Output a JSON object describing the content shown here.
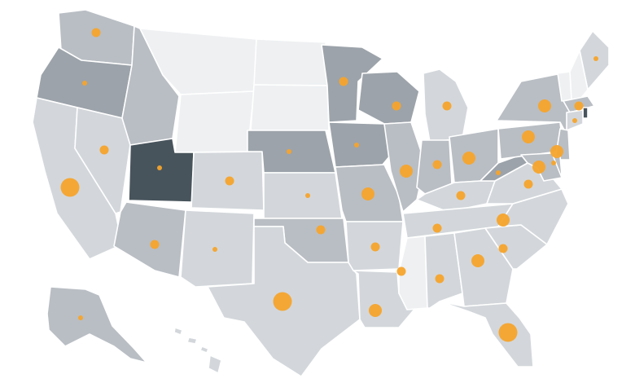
{
  "map": {
    "type": "choropleth-bubble",
    "region": "United States",
    "colors": {
      "level0": "#eef0f2",
      "level1": "#d3d7db",
      "level2": "#b9bec4",
      "level3": "#9ca3aa",
      "level4": "#48545c",
      "bubble": "#f6a42c",
      "border": "#ffffff"
    },
    "states": [
      {
        "code": "WA",
        "level": 2
      },
      {
        "code": "OR",
        "level": 3
      },
      {
        "code": "CA",
        "level": 1
      },
      {
        "code": "NV",
        "level": 1
      },
      {
        "code": "ID",
        "level": 2
      },
      {
        "code": "MT",
        "level": 0
      },
      {
        "code": "WY",
        "level": 0
      },
      {
        "code": "UT",
        "level": 4
      },
      {
        "code": "CO",
        "level": 1
      },
      {
        "code": "AZ",
        "level": 2
      },
      {
        "code": "NM",
        "level": 1
      },
      {
        "code": "ND",
        "level": 0
      },
      {
        "code": "SD",
        "level": 0
      },
      {
        "code": "NE",
        "level": 3
      },
      {
        "code": "KS",
        "level": 1
      },
      {
        "code": "OK",
        "level": 2
      },
      {
        "code": "TX",
        "level": 1
      },
      {
        "code": "MN",
        "level": 3
      },
      {
        "code": "IA",
        "level": 3
      },
      {
        "code": "MO",
        "level": 2
      },
      {
        "code": "AR",
        "level": 1
      },
      {
        "code": "LA",
        "level": 1
      },
      {
        "code": "WI",
        "level": 3
      },
      {
        "code": "IL",
        "level": 2
      },
      {
        "code": "MI",
        "level": 1
      },
      {
        "code": "IN",
        "level": 2
      },
      {
        "code": "OH",
        "level": 2
      },
      {
        "code": "KY",
        "level": 1
      },
      {
        "code": "TN",
        "level": 1
      },
      {
        "code": "MS",
        "level": 0
      },
      {
        "code": "AL",
        "level": 1
      },
      {
        "code": "GA",
        "level": 1
      },
      {
        "code": "FL",
        "level": 1
      },
      {
        "code": "SC",
        "level": 1
      },
      {
        "code": "NC",
        "level": 1
      },
      {
        "code": "VA",
        "level": 1
      },
      {
        "code": "WV",
        "level": 3
      },
      {
        "code": "PA",
        "level": 2
      },
      {
        "code": "NY",
        "level": 2
      },
      {
        "code": "ME",
        "level": 1
      },
      {
        "code": "VT",
        "level": 0
      },
      {
        "code": "NH",
        "level": 0
      },
      {
        "code": "MA",
        "level": 2
      },
      {
        "code": "RI",
        "level": 4
      },
      {
        "code": "CT",
        "level": 1
      },
      {
        "code": "NJ",
        "level": 2
      },
      {
        "code": "DE",
        "level": 2
      },
      {
        "code": "MD",
        "level": 2
      },
      {
        "code": "AK",
        "level": 2
      },
      {
        "code": "HI",
        "level": 1
      }
    ],
    "bubbles": [
      {
        "state": "WA",
        "size": "small"
      },
      {
        "state": "OR",
        "size": "tiny"
      },
      {
        "state": "CA",
        "size": "large"
      },
      {
        "state": "NV",
        "size": "small"
      },
      {
        "state": "UT",
        "size": "tiny"
      },
      {
        "state": "AZ",
        "size": "small"
      },
      {
        "state": "NM",
        "size": "tiny"
      },
      {
        "state": "CO",
        "size": "small"
      },
      {
        "state": "NE",
        "size": "tiny"
      },
      {
        "state": "KS",
        "size": "tiny"
      },
      {
        "state": "OK",
        "size": "small"
      },
      {
        "state": "TX",
        "size": "large"
      },
      {
        "state": "MN",
        "size": "small"
      },
      {
        "state": "IA",
        "size": "tiny"
      },
      {
        "state": "MO",
        "size": "medium"
      },
      {
        "state": "AR",
        "size": "small"
      },
      {
        "state": "LA",
        "size": "medium"
      },
      {
        "state": "WI",
        "size": "small"
      },
      {
        "state": "IL",
        "size": "medium"
      },
      {
        "state": "MI",
        "size": "small"
      },
      {
        "state": "IN",
        "size": "small"
      },
      {
        "state": "OH",
        "size": "medium"
      },
      {
        "state": "KY",
        "size": "small"
      },
      {
        "state": "TN",
        "size": "small"
      },
      {
        "state": "MS",
        "size": "small"
      },
      {
        "state": "AL",
        "size": "small"
      },
      {
        "state": "GA",
        "size": "medium"
      },
      {
        "state": "FL",
        "size": "large"
      },
      {
        "state": "SC",
        "size": "small"
      },
      {
        "state": "NC",
        "size": "medium"
      },
      {
        "state": "VA",
        "size": "small"
      },
      {
        "state": "WV",
        "size": "tiny"
      },
      {
        "state": "PA",
        "size": "medium"
      },
      {
        "state": "NY",
        "size": "medium"
      },
      {
        "state": "ME",
        "size": "tiny"
      },
      {
        "state": "MA",
        "size": "small"
      },
      {
        "state": "NJ",
        "size": "medium"
      },
      {
        "state": "MD",
        "size": "medium"
      },
      {
        "state": "DE",
        "size": "tiny"
      },
      {
        "state": "CT",
        "size": "tiny"
      },
      {
        "state": "AK",
        "size": "tiny"
      }
    ]
  }
}
